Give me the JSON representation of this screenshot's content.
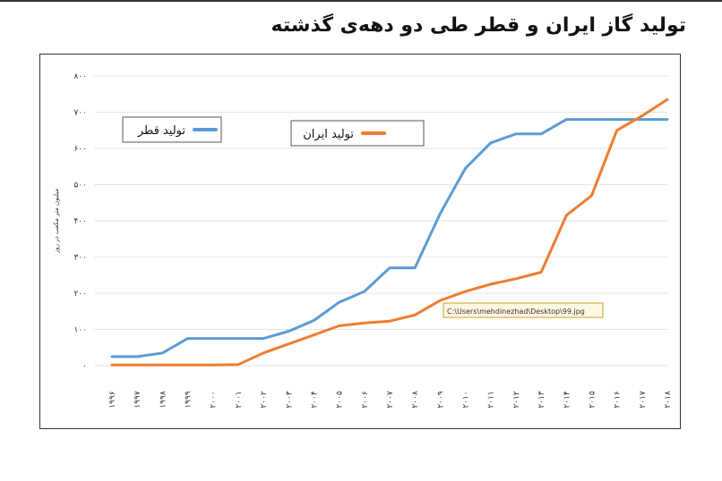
{
  "page": {
    "title": "تولید گاز ایران و قطر طی دو دهه‌ی گذشته"
  },
  "chart_data": {
    "type": "line",
    "x": [
      "۱۹۹۶",
      "۱۹۹۷",
      "۱۹۹۸",
      "۱۹۹۹",
      "۲۰۰۰",
      "۲۰۰۱",
      "۲۰۰۲",
      "۲۰۰۳",
      "۲۰۰۴",
      "۲۰۰۵",
      "۲۰۰۶",
      "۲۰۰۷",
      "۲۰۰۸",
      "۲۰۰۹",
      "۲۰۱۰",
      "۲۰۱۱",
      "۲۰۱۲",
      "۲۰۱۳",
      "۲۰۱۴",
      "۲۰۱۵",
      "۲۰۱۶",
      "۲۰۱۷",
      "۲۰۱۸"
    ],
    "ylabel": "میلیون متر مکعب در روز",
    "ylim": [
      0,
      800
    ],
    "yticks": [
      0,
      100,
      200,
      300,
      400,
      500,
      600,
      700,
      800
    ],
    "ytick_labels": [
      "۰",
      "۱۰۰",
      "۲۰۰",
      "۳۰۰",
      "۴۰۰",
      "۵۰۰",
      "۶۰۰",
      "۷۰۰",
      "۸۰۰"
    ],
    "grid": true,
    "legend_position": "top",
    "series": [
      {
        "name": "تولید قطر",
        "color": "#5b9bd5",
        "values": [
          25,
          25,
          35,
          75,
          75,
          75,
          75,
          95,
          125,
          175,
          205,
          270,
          270,
          420,
          545,
          615,
          640,
          640,
          680,
          680,
          680,
          680,
          680
        ]
      },
      {
        "name": "تولید ایران",
        "color": "#ed7d31",
        "values": [
          2,
          2,
          2,
          2,
          2,
          3,
          35,
          60,
          85,
          110,
          118,
          123,
          140,
          180,
          205,
          225,
          240,
          258,
          415,
          470,
          650,
          690,
          735
        ]
      }
    ],
    "annotation": "C:\\Users\\mehdinezhad\\Desktop\\99.jpg"
  }
}
